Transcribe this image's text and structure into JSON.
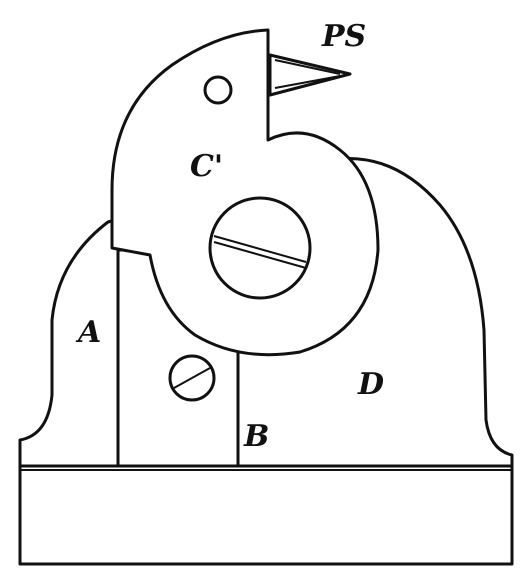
{
  "labels": {
    "ps": "PS",
    "c_prime": "C'",
    "a": "A",
    "b": "B",
    "d": "D"
  }
}
